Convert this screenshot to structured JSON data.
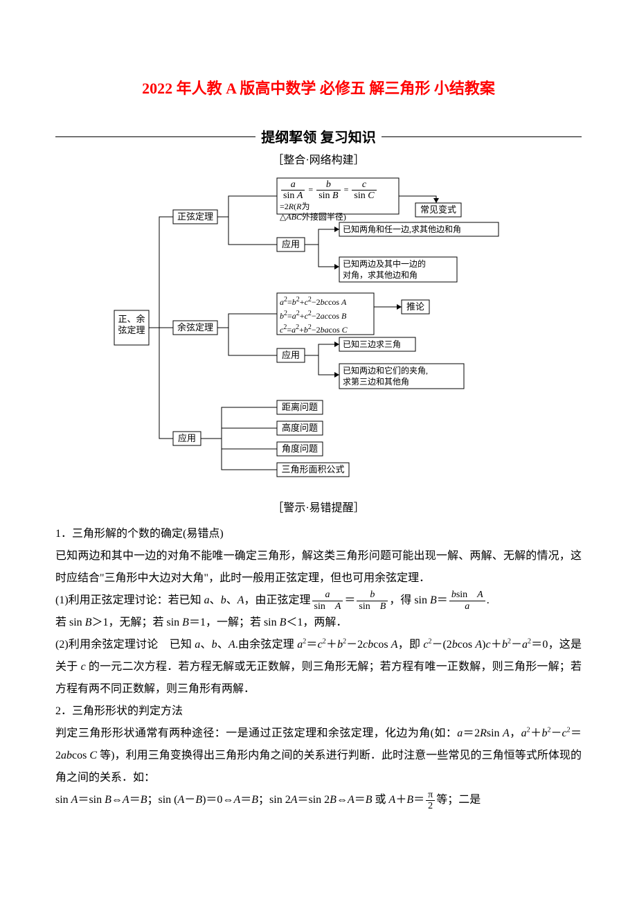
{
  "title": "2022 年人教 A 版高中数学 必修五 解三角形 小结教案",
  "section_header": "提纲挈领 复习知识",
  "subheader1": "［整合·网络构建］",
  "subheader2": "［警示·易错提醒］",
  "diagram": {
    "root": "正、余弦定理",
    "b1": "正弦定理",
    "b2": "余弦定理",
    "b3": "应用",
    "sine_formula_html": "<span class='frac'><span class='num ital'>a</span><span class='den'>sin <span class='ital'>A</span></span></span> = <span class='frac'><span class='num ital'>b</span><span class='den'>sin <span class='ital'>B</span></span></span> = <span class='frac'><span class='num ital'>c</span><span class='den'>sin <span class='ital'>C</span></span></span> =2<span class='ital'>R</span>(<span class='ital'>R</span>为<br>△<span class='ital'>ABC</span>外接圆半径)",
    "sine_app": "应用",
    "sine_r1": "常见变式",
    "sine_r2": "已知两角和任一边,求其他边和角",
    "sine_r3": "已知两边及其中一边的对角，求其他边和角",
    "cos_formula_html": "<span class='ital'>a</span><span class='sup'>2</span>=<span class='ital'>b</span><span class='sup'>2</span>+<span class='ital'>c</span><span class='sup'>2</span>−2<span class='ital'>bc</span>cos <span class='ital'>A</span><br><span class='ital'>b</span><span class='sup'>2</span>=<span class='ital'>a</span><span class='sup'>2</span>+<span class='ital'>c</span><span class='sup'>2</span>−2<span class='ital'>ac</span>cos <span class='ital'>B</span><br><span class='ital'>c</span><span class='sup'>2</span>=<span class='ital'>a</span><span class='sup'>2</span>+<span class='ital'>b</span><span class='sup'>2</span>−2<span class='ital'>ba</span>cos <span class='ital'>C</span>",
    "cos_r1": "推论",
    "cos_app": "应用",
    "cos_r2": "已知三边求三角",
    "cos_r3": "已知两边和它们的夹角，求第三边和其他角",
    "app1": "距离问题",
    "app2": "高度问题",
    "app3": "角度问题",
    "app4": "三角形面积公式",
    "colors": {
      "border": "#000000",
      "bg": "#ffffff"
    }
  },
  "body": {
    "p1": "1．三角形解的个数的确定(易错点)",
    "p2": "已知两边和其中一边的对角不能唯一确定三角形，解这类三角形问题可能出现一解、两解、无解的情况，这时应结合\"三角形中大边对大角\"，此时一般用正弦定理，但也可用余弦定理．",
    "p3_html": "(1)利用正弦定理讨论：若已知 <span class='ital'>a</span>、<span class='ital'>b</span>、<span class='ital'>A</span>，由正弦定理<span class='frac'><span class='num ital'>a</span><span class='den'>sin　<span class='ital'>A</span></span></span>＝<span class='frac'><span class='num ital'>b</span><span class='den'>sin　<span class='ital'>B</span></span></span>，得 sin <span class='ital'>B</span>＝<span class='frac'><span class='num'><span class='ital'>b</span>sin　<span class='ital'>A</span></span><span class='den ital'>a</span></span>.",
    "p4_html": "若 sin <span class='ital'>B</span>＞1，无解；若 sin <span class='ital'>B</span>＝1，一解；若 sin <span class='ital'>B</span>＜1，两解．",
    "p5_html": "(2)利用余弦定理讨论　已知 <span class='ital'>a</span>、<span class='ital'>b</span>、<span class='ital'>A</span>.由余弦定理 <span class='ital'>a</span><span class='sup'>2</span>＝<span class='ital'>c</span><span class='sup'>2</span>＋<span class='ital'>b</span><span class='sup'>2</span>－2<span class='ital'>cb</span>cos <span class='ital'>A</span>，即 <span class='ital'>c</span><span class='sup'>2</span>－(2<span class='ital'>b</span>cos <span class='ital'>A</span>)<span class='ital'>c</span>＋<span class='ital'>b</span><span class='sup'>2</span>－<span class='ital'>a</span><span class='sup'>2</span>＝0，这是关于 <span class='ital'>c</span> 的一元二次方程．若方程无解或无正数解，则三角形无解；若方程有唯一正数解，则三角形一解；若方程有两不同正数解，则三角形有两解．",
    "p6": "2．三角形形状的判定方法",
    "p7_html": "判定三角形形状通常有两种途径：一是通过正弦定理和余弦定理，化边为角(如：<span class='ital'>a</span>＝2<span class='ital'>R</span>sin <span class='ital'>A</span>，<span class='ital'>a</span><span class='sup'>2</span>＋<span class='ital'>b</span><span class='sup'>2</span>－<span class='ital'>c</span><span class='sup'>2</span>＝2<span class='ital'>ab</span>cos <span class='ital'>C</span> 等)，利用三角变换得出三角形内角之间的关系进行判断．此时注意一些常见的三角恒等式所体现的角之间的关系．如：",
    "p8_html": "sin <span class='ital'>A</span>＝sin <span class='ital'>B</span>⇔<span class='ital'>A</span>＝<span class='ital'>B</span>；sin (<span class='ital'>A</span>－<span class='ital'>B</span>)＝0⇔<span class='ital'>A</span>＝<span class='ital'>B</span>；sin 2<span class='ital'>A</span>＝sin 2<span class='ital'>B</span>⇔<span class='ital'>A</span>＝<span class='ital'>B</span> 或 <span class='ital'>A</span>＋<span class='ital'>B</span>＝<span class='frac'><span class='num'>π</span><span class='den'>2</span></span>等；二是"
  }
}
